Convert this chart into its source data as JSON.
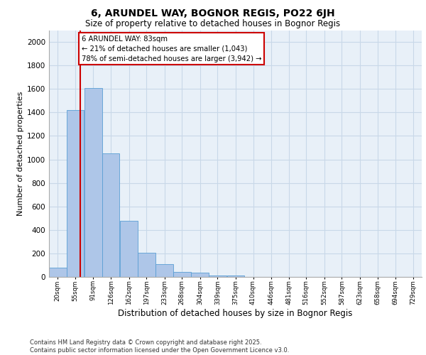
{
  "title": "6, ARUNDEL WAY, BOGNOR REGIS, PO22 6JH",
  "subtitle": "Size of property relative to detached houses in Bognor Regis",
  "xlabel": "Distribution of detached houses by size in Bognor Regis",
  "ylabel": "Number of detached properties",
  "bar_color": "#aec6e8",
  "bar_edge_color": "#5a9fd4",
  "grid_color": "#c8d8e8",
  "background_color": "#e8f0f8",
  "fig_background": "#ffffff",
  "annotation_box_color": "#cc0000",
  "annotation_line1": "6 ARUNDEL WAY: 83sqm",
  "annotation_line2": "← 21% of detached houses are smaller (1,043)",
  "annotation_line3": "78% of semi-detached houses are larger (3,942) →",
  "redline_x": 83,
  "categories": [
    "20sqm",
    "55sqm",
    "91sqm",
    "126sqm",
    "162sqm",
    "197sqm",
    "233sqm",
    "268sqm",
    "304sqm",
    "339sqm",
    "375sqm",
    "410sqm",
    "446sqm",
    "481sqm",
    "516sqm",
    "552sqm",
    "587sqm",
    "623sqm",
    "658sqm",
    "694sqm",
    "729sqm"
  ],
  "bin_edges": [
    20,
    55,
    91,
    126,
    162,
    197,
    233,
    268,
    304,
    339,
    375,
    410,
    446,
    481,
    516,
    552,
    587,
    623,
    658,
    694,
    729
  ],
  "bin_width": 35,
  "values": [
    80,
    1420,
    1610,
    1050,
    480,
    205,
    110,
    40,
    35,
    15,
    12,
    0,
    0,
    0,
    0,
    0,
    0,
    0,
    0,
    0,
    0
  ],
  "ylim": [
    0,
    2100
  ],
  "yticks": [
    0,
    200,
    400,
    600,
    800,
    1000,
    1200,
    1400,
    1600,
    1800,
    2000
  ],
  "footer_line1": "Contains HM Land Registry data © Crown copyright and database right 2025.",
  "footer_line2": "Contains public sector information licensed under the Open Government Licence v3.0."
}
